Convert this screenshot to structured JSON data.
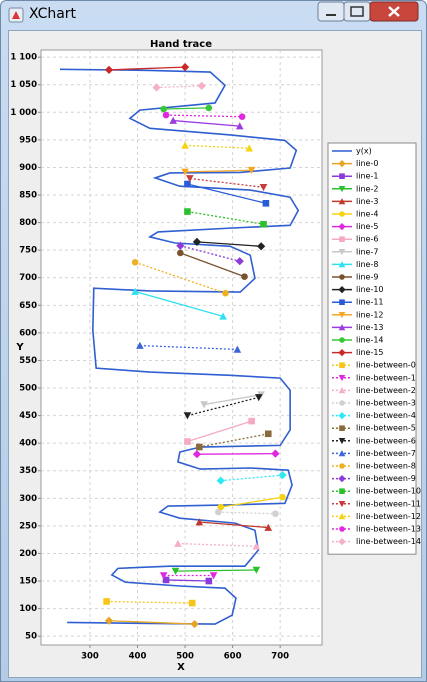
{
  "window": {
    "title": "XChart"
  },
  "chart_data": {
    "type": "line",
    "title": "Hand trace",
    "x_label": "X",
    "y_label": "Y",
    "xlim": [
      197,
      788
    ],
    "xticks": [
      300,
      400,
      500,
      600,
      700
    ],
    "ylim": [
      34,
      1113
    ],
    "yticks": [
      50,
      100,
      150,
      200,
      250,
      300,
      350,
      400,
      450,
      500,
      550,
      600,
      650,
      700,
      750,
      800,
      850,
      900,
      950,
      {
        "value": 1000,
        "label": "1 000"
      },
      {
        "value": 1050,
        "label": "1 050"
      },
      {
        "value": 1100,
        "label": "1 100"
      }
    ],
    "grid": true,
    "legend": "right",
    "series": [
      {
        "name": "y(x)",
        "color": "#2f5fd0",
        "marker": "none",
        "style": "solid",
        "x": [
          252,
          426,
          563,
          599,
          607,
          584,
          489,
          374,
          346,
          359,
          468,
          626,
          654,
          647,
          605,
          489,
          447,
          464,
          595,
          710,
          725,
          717,
          637,
          532,
          485,
          489,
          532,
          700,
          721,
          721,
          700,
          595,
          426,
          313,
          306,
          308,
          426,
          616,
          647,
          637,
          595,
          479,
          426,
          443,
          595,
          721,
          738,
          721,
          637,
          489,
          437,
          468,
          616,
          721,
          734,
          710,
          595,
          426,
          384,
          405,
          563,
          584,
          553,
          426,
          237
        ],
        "values": [
          75,
          73,
          72,
          88,
          119,
          137,
          141,
          148,
          161,
          173,
          177,
          177,
          206,
          242,
          255,
          264,
          275,
          286,
          288,
          291,
          324,
          351,
          355,
          353,
          366,
          384,
          393,
          396,
          424,
          496,
          518,
          523,
          529,
          536,
          605,
          681,
          676,
          674,
          699,
          741,
          757,
          763,
          774,
          783,
          790,
          795,
          822,
          846,
          859,
          866,
          881,
          890,
          891,
          899,
          931,
          949,
          959,
          971,
          989,
          1004,
          1017,
          1049,
          1073,
          1076,
          1078
        ]
      },
      {
        "name": "line-0",
        "color": "#e7a526",
        "marker": "diamond",
        "style": "solid",
        "x": [
          340,
          520
        ],
        "values": [
          78,
          72
        ]
      },
      {
        "name": "line-1",
        "color": "#8a3bd9",
        "marker": "square",
        "style": "solid",
        "x": [
          460,
          550
        ],
        "values": [
          152,
          150
        ]
      },
      {
        "name": "line-2",
        "color": "#2bc02b",
        "marker": "triangle-down",
        "style": "solid",
        "x": [
          480,
          650
        ],
        "values": [
          168,
          170
        ]
      },
      {
        "name": "line-3",
        "color": "#c0392b",
        "marker": "triangle-up",
        "style": "solid",
        "x": [
          530,
          675
        ],
        "values": [
          257,
          247
        ]
      },
      {
        "name": "line-4",
        "color": "#f5d311",
        "marker": "circle",
        "style": "solid",
        "x": [
          575,
          705
        ],
        "values": [
          284,
          302
        ]
      },
      {
        "name": "line-5",
        "color": "#e028e0",
        "marker": "diamond",
        "style": "solid",
        "x": [
          525,
          690
        ],
        "values": [
          380,
          381
        ]
      },
      {
        "name": "line-6",
        "color": "#f5a9c5",
        "marker": "square",
        "style": "solid",
        "x": [
          505,
          640
        ],
        "values": [
          403,
          440
        ]
      },
      {
        "name": "line-7",
        "color": "#c8c8c8",
        "marker": "triangle-down",
        "style": "solid",
        "x": [
          540,
          660
        ],
        "values": [
          470,
          488
        ]
      },
      {
        "name": "line-8",
        "color": "#2ee0f0",
        "marker": "triangle-up",
        "style": "solid",
        "x": [
          395,
          580
        ],
        "values": [
          675,
          630
        ]
      },
      {
        "name": "line-9",
        "color": "#7a5230",
        "marker": "circle",
        "style": "solid",
        "x": [
          490,
          625
        ],
        "values": [
          745,
          702
        ]
      },
      {
        "name": "line-10",
        "color": "#222222",
        "marker": "diamond",
        "style": "solid",
        "x": [
          525,
          660
        ],
        "values": [
          765,
          757
        ]
      },
      {
        "name": "line-11",
        "color": "#2a5bd7",
        "marker": "square",
        "style": "solid",
        "x": [
          505,
          670
        ],
        "values": [
          870,
          835
        ]
      },
      {
        "name": "line-12",
        "color": "#f5a623",
        "marker": "triangle-down",
        "style": "solid",
        "x": [
          500,
          640
        ],
        "values": [
          892,
          895
        ]
      },
      {
        "name": "line-13",
        "color": "#9b3be0",
        "marker": "triangle-up",
        "style": "solid",
        "x": [
          475,
          615
        ],
        "values": [
          985,
          975
        ]
      },
      {
        "name": "line-14",
        "color": "#37c837",
        "marker": "circle",
        "style": "solid",
        "x": [
          455,
          550
        ],
        "values": [
          1006,
          1008
        ]
      },
      {
        "name": "line-15",
        "color": "#c82828",
        "marker": "diamond",
        "style": "solid",
        "x": [
          340,
          500
        ],
        "values": [
          1077,
          1082
        ]
      },
      {
        "name": "line-between-0",
        "color": "#f5c518",
        "marker": "square",
        "style": "dotted",
        "x": [
          335,
          515
        ],
        "values": [
          113,
          110
        ]
      },
      {
        "name": "line-between-1",
        "color": "#e028e0",
        "marker": "triangle-down",
        "style": "dotted",
        "x": [
          455,
          560
        ],
        "values": [
          160,
          160
        ]
      },
      {
        "name": "line-between-2",
        "color": "#f5b0c8",
        "marker": "triangle-up",
        "style": "dotted",
        "x": [
          485,
          650
        ],
        "values": [
          218,
          213
        ]
      },
      {
        "name": "line-between-3",
        "color": "#d0d0d0",
        "marker": "circle",
        "style": "dotted",
        "x": [
          570,
          690
        ],
        "values": [
          275,
          272
        ]
      },
      {
        "name": "line-between-4",
        "color": "#2ee8f5",
        "marker": "diamond",
        "style": "dotted",
        "x": [
          575,
          705
        ],
        "values": [
          332,
          342
        ]
      },
      {
        "name": "line-between-5",
        "color": "#8a6a3a",
        "marker": "square",
        "style": "dotted",
        "x": [
          530,
          675
        ],
        "values": [
          393,
          417
        ]
      },
      {
        "name": "line-between-6",
        "color": "#222222",
        "marker": "triangle-down",
        "style": "dotted",
        "x": [
          505,
          655
        ],
        "values": [
          450,
          483
        ]
      },
      {
        "name": "line-between-7",
        "color": "#3a66d8",
        "marker": "triangle-up",
        "style": "dotted",
        "x": [
          405,
          610
        ],
        "values": [
          577,
          570
        ]
      },
      {
        "name": "line-between-8",
        "color": "#f0b020",
        "marker": "circle",
        "style": "dotted",
        "x": [
          395,
          585
        ],
        "values": [
          728,
          672
        ]
      },
      {
        "name": "line-between-9",
        "color": "#8a3bd9",
        "marker": "diamond",
        "style": "dotted",
        "x": [
          490,
          615
        ],
        "values": [
          758,
          730
        ]
      },
      {
        "name": "line-between-10",
        "color": "#2bc02b",
        "marker": "square",
        "style": "dotted",
        "x": [
          505,
          665
        ],
        "values": [
          820,
          797
        ]
      },
      {
        "name": "line-between-11",
        "color": "#c83c3c",
        "marker": "triangle-down",
        "style": "dotted",
        "x": [
          510,
          665
        ],
        "values": [
          880,
          864
        ]
      },
      {
        "name": "line-between-12",
        "color": "#f5d311",
        "marker": "triangle-up",
        "style": "dotted",
        "x": [
          500,
          635
        ],
        "values": [
          940,
          935
        ]
      },
      {
        "name": "line-between-13",
        "color": "#e028e0",
        "marker": "circle",
        "style": "dotted",
        "x": [
          460,
          620
        ],
        "values": [
          995,
          992
        ]
      },
      {
        "name": "line-between-14",
        "color": "#f5b0c8",
        "marker": "diamond",
        "style": "dotted",
        "x": [
          440,
          535
        ],
        "values": [
          1045,
          1048
        ]
      }
    ]
  }
}
